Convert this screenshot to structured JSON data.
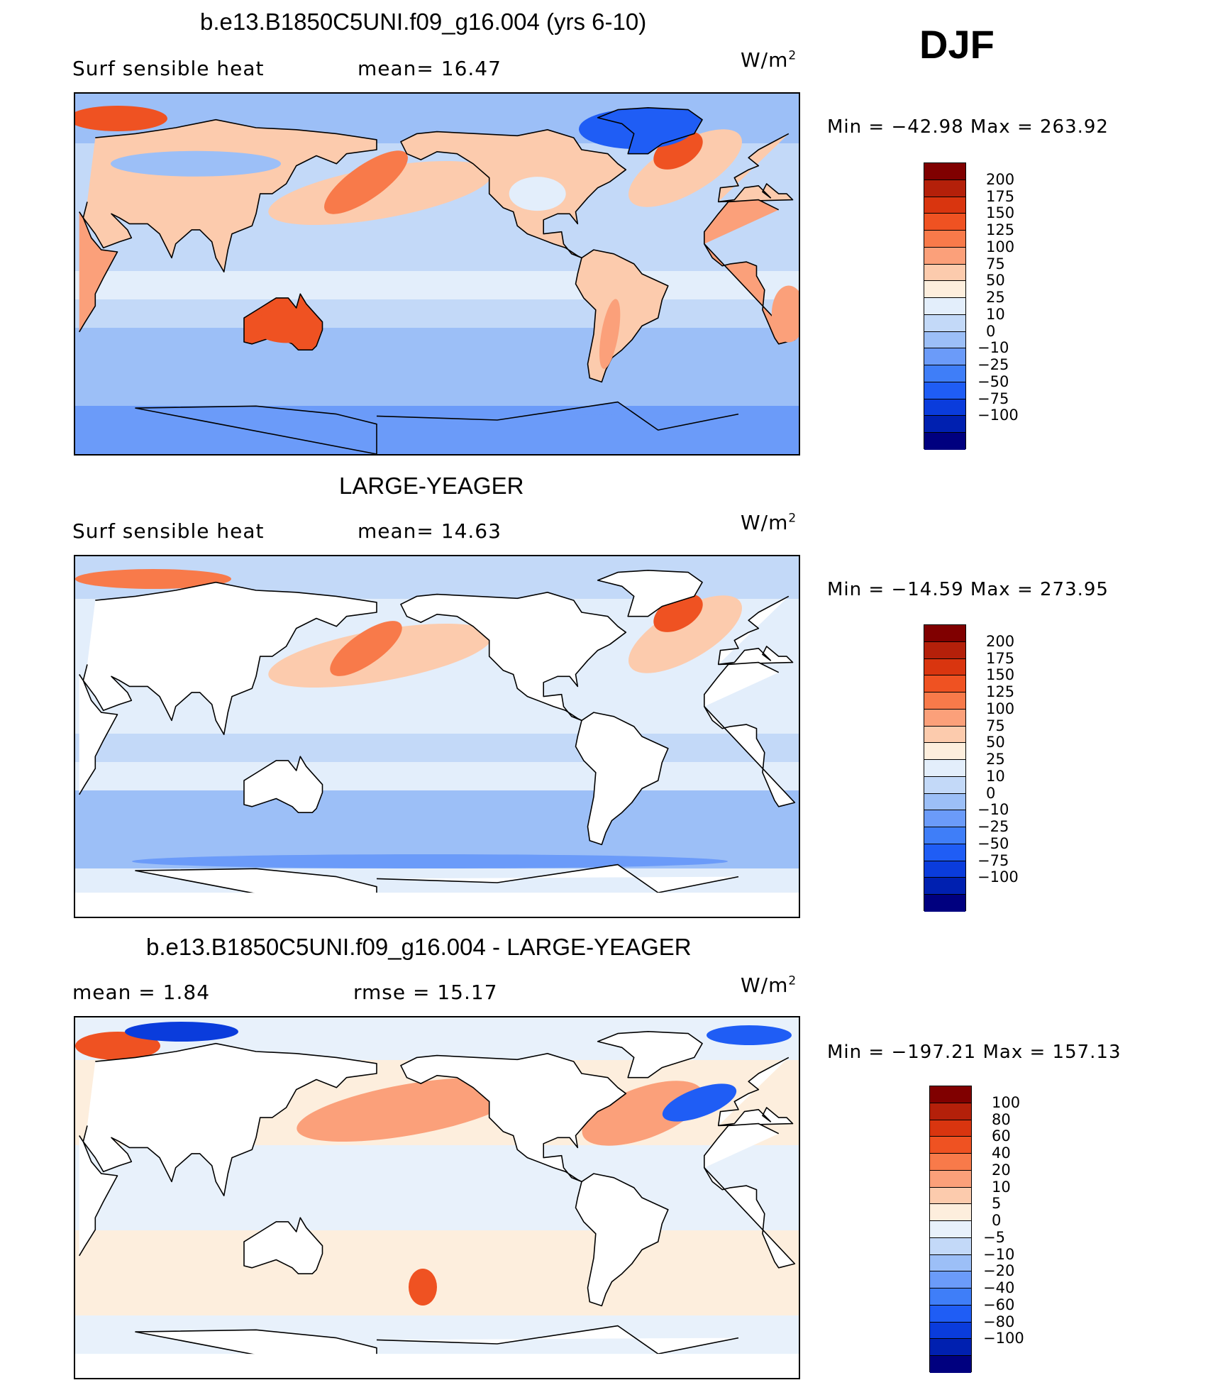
{
  "season": "DJF",
  "units_base": "W/m",
  "units_exp": "2",
  "colors": {
    "abs": [
      "#00007f",
      "#0020b0",
      "#0a3cdc",
      "#1f5df5",
      "#3f7ef8",
      "#6b9bf9",
      "#9cbff7",
      "#c3d9f8",
      "#e3eefb",
      "#fdeedd",
      "#fccbad",
      "#fba07a",
      "#f87a4a",
      "#ef5222",
      "#d9350f",
      "#b4200a",
      "#800000"
    ],
    "diff": [
      "#00007f",
      "#0020b0",
      "#0a3cdc",
      "#1f5df5",
      "#3f7ef8",
      "#6b9bf9",
      "#9cbff7",
      "#c3d9f8",
      "#e8f1fb",
      "#fdeedd",
      "#fccbad",
      "#fba07a",
      "#f87a4a",
      "#ef5222",
      "#d9350f",
      "#b4200a",
      "#800000"
    ]
  },
  "panels": [
    {
      "title": "b.e13.B1850C5UNI.f09_g16.004 (yrs 6-10)",
      "left_label": "Surf  sensible  heat",
      "stat": "mean=   16.47",
      "minmax": "Min  =  −42.98  Max  =  263.92",
      "levels": [
        "200",
        "175",
        "150",
        "125",
        "100",
        "75",
        "50",
        "25",
        "10",
        "0",
        "−10",
        "−25",
        "−50",
        "−75",
        "−100"
      ],
      "land_fill": true
    },
    {
      "title": "LARGE-YEAGER",
      "left_label": "Surf  sensible  heat",
      "stat": "mean=   14.63",
      "minmax": "Min  =  −14.59  Max  =  273.95",
      "levels": [
        "200",
        "175",
        "150",
        "125",
        "100",
        "75",
        "50",
        "25",
        "10",
        "0",
        "−10",
        "−25",
        "−50",
        "−75",
        "−100"
      ],
      "land_fill": false
    },
    {
      "title": "b.e13.B1850C5UNI.f09_g16.004 - LARGE-YEAGER",
      "left_label": "mean  =     1.84",
      "stat": "rmse  =    15.17",
      "minmax": "Min  =  −197.21  Max  =  157.13",
      "levels": [
        "100",
        "80",
        "60",
        "40",
        "20",
        "10",
        "5",
        "0",
        "−5",
        "−10",
        "−20",
        "−40",
        "−60",
        "−80",
        "−100"
      ],
      "land_fill": false
    }
  ],
  "chart_data": [
    {
      "type": "heatmap",
      "title": "b.e13.B1850C5UNI.f09_g16.004 (yrs 6-10)",
      "variable": "Surf  sensible  heat",
      "units": "W/m2",
      "mean": 16.47,
      "min": -42.98,
      "max": 263.92,
      "contour_levels": [
        -100,
        -75,
        -50,
        -25,
        -10,
        0,
        10,
        25,
        50,
        75,
        100,
        125,
        150,
        175,
        200
      ],
      "projection": "cylindrical equidistant, Pacific-centered"
    },
    {
      "type": "heatmap",
      "title": "LARGE-YEAGER",
      "variable": "Surf  sensible  heat",
      "units": "W/m2",
      "mean": 14.63,
      "min": -14.59,
      "max": 273.95,
      "contour_levels": [
        -100,
        -75,
        -50,
        -25,
        -10,
        0,
        10,
        25,
        50,
        75,
        100,
        125,
        150,
        175,
        200
      ],
      "projection": "cylindrical equidistant, Pacific-centered"
    },
    {
      "type": "heatmap",
      "title": "b.e13.B1850C5UNI.f09_g16.004 - LARGE-YEAGER",
      "units": "W/m2",
      "mean": 1.84,
      "rmse": 15.17,
      "min": -197.21,
      "max": 157.13,
      "contour_levels": [
        -100,
        -80,
        -60,
        -40,
        -20,
        -10,
        -5,
        0,
        5,
        10,
        20,
        40,
        60,
        80,
        100
      ],
      "projection": "cylindrical equidistant, Pacific-centered"
    }
  ]
}
